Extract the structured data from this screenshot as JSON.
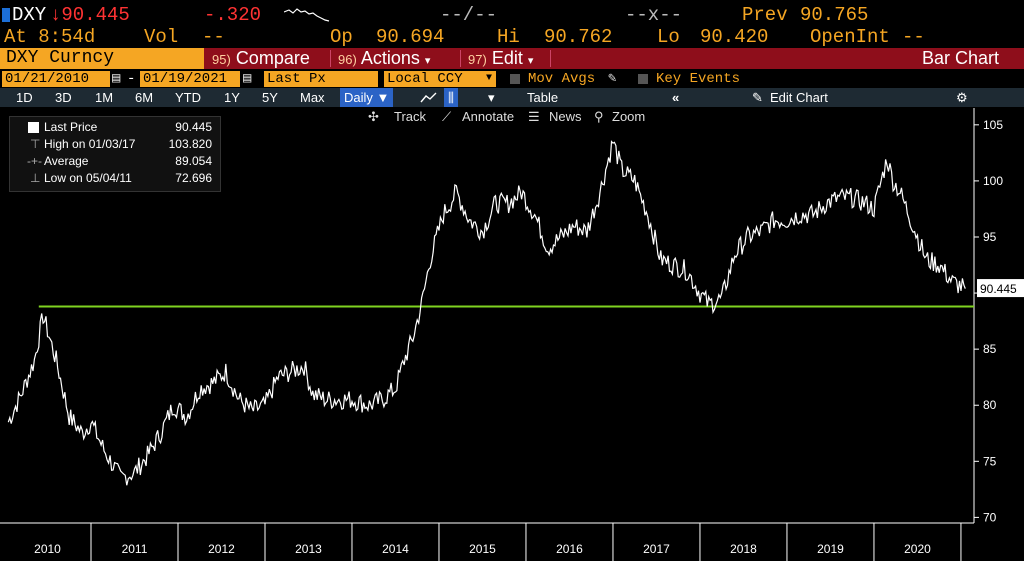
{
  "quote": {
    "ticker": "DXY",
    "last": "↓90.445",
    "change": "-.320",
    "bidask": "--/--",
    "size": "--x--",
    "prev_label": "Prev",
    "prev": "90.765",
    "time": "At 8:54d",
    "vol_label": "Vol",
    "vol": "--",
    "op_label": "Op",
    "op": "90.694",
    "hi_label": "Hi",
    "hi": "90.762",
    "lo_label": "Lo",
    "lo": "90.420",
    "oi_label": "OpenInt",
    "oi": "--"
  },
  "function_bar": {
    "security": "DXY Curncy",
    "compare_num": "95)",
    "compare": "Compare",
    "actions_num": "96)",
    "actions": "Actions",
    "edit_num": "97)",
    "edit": "Edit",
    "chart_type": "Bar Chart"
  },
  "controls": {
    "start_date": "01/21/2010",
    "end_date": "01/19/2021",
    "field": "Last Px",
    "currency": "Local CCY",
    "mov_avgs": "Mov Avgs",
    "key_events": "Key Events"
  },
  "periods": {
    "items": [
      "1D",
      "3D",
      "1M",
      "6M",
      "YTD",
      "1Y",
      "5Y",
      "Max"
    ],
    "frequency": "Daily",
    "table": "Table",
    "edit_chart": "Edit Chart"
  },
  "tools": {
    "track": "Track",
    "annotate": "Annotate",
    "news": "News",
    "zoom": "Zoom"
  },
  "legend": {
    "last_label": "Last Price",
    "last_value": "90.445",
    "high_label": "High on 01/03/17",
    "high_value": "103.820",
    "avg_label": "Average",
    "avg_value": "89.054",
    "low_label": "Low on 05/04/11",
    "low_value": "72.696"
  },
  "colors": {
    "background": "#000000",
    "amber": "#f5a623",
    "red_bar": "#8e0e1b",
    "price_line": "#ffffff",
    "support_line": "#7fd321"
  },
  "chart_data": {
    "type": "line",
    "series": [
      {
        "name": "",
        "x": [
          2010.05,
          2010.2,
          2010.35,
          2010.45,
          2010.6,
          2010.75,
          2010.9,
          2011.0,
          2011.15,
          2011.34,
          2011.5,
          2011.65,
          2011.8,
          2011.95,
          2012.1,
          2012.25,
          2012.4,
          2012.55,
          2012.7,
          2012.85,
          2013.0,
          2013.15,
          2013.3,
          2013.45,
          2013.55,
          2013.7,
          2013.85,
          2014.0,
          2014.2,
          2014.35,
          2014.5,
          2014.6,
          2014.7,
          2014.8,
          2014.9,
          2015.05,
          2015.2,
          2015.35,
          2015.5,
          2015.65,
          2015.8,
          2015.95,
          2016.1,
          2016.25,
          2016.4,
          2016.55,
          2016.7,
          2016.85,
          2017.0,
          2017.1,
          2017.25,
          2017.4,
          2017.55,
          2017.7,
          2017.85,
          2018.0,
          2018.1,
          2018.25,
          2018.4,
          2018.55,
          2018.7,
          2018.85,
          2019.0,
          2019.15,
          2019.3,
          2019.45,
          2019.6,
          2019.75,
          2019.9,
          2020.0,
          2020.15,
          2020.22,
          2020.3,
          2020.45,
          2020.6,
          2020.75,
          2020.9,
          2021.05
        ],
        "y": [
          78.5,
          81,
          84,
          88,
          84,
          79,
          77.5,
          78.5,
          76,
          73.5,
          74,
          75.5,
          77.5,
          80,
          79,
          81.5,
          82,
          83,
          80.5,
          79.5,
          80,
          82.5,
          83,
          83.5,
          81,
          80.5,
          80.5,
          80.5,
          80,
          80.5,
          81.5,
          84,
          86,
          89,
          93,
          97,
          99,
          96.5,
          95.5,
          98,
          98,
          99,
          97,
          94,
          95,
          96,
          95.5,
          99,
          103.5,
          101,
          100,
          97,
          93,
          92.5,
          92,
          90,
          89,
          89.5,
          93.5,
          95,
          95.5,
          96.5,
          96.5,
          97,
          97,
          98,
          98.5,
          98.5,
          98,
          97.5,
          102,
          100,
          99,
          96,
          93,
          92.5,
          91,
          90.4
        ]
      }
    ],
    "support_level": 88.8,
    "last_value": 90.445,
    "ylim": [
      69.5,
      106.5
    ],
    "xlim": [
      2010.0,
      2021.15
    ],
    "y_ticks": [
      70,
      75,
      80,
      85,
      90,
      95,
      100,
      105
    ],
    "x_ticks": [
      "2010",
      "2011",
      "2012",
      "2013",
      "2014",
      "2015",
      "2016",
      "2017",
      "2018",
      "2019",
      "2020"
    ],
    "grid": false,
    "legend_position": "top-left"
  }
}
